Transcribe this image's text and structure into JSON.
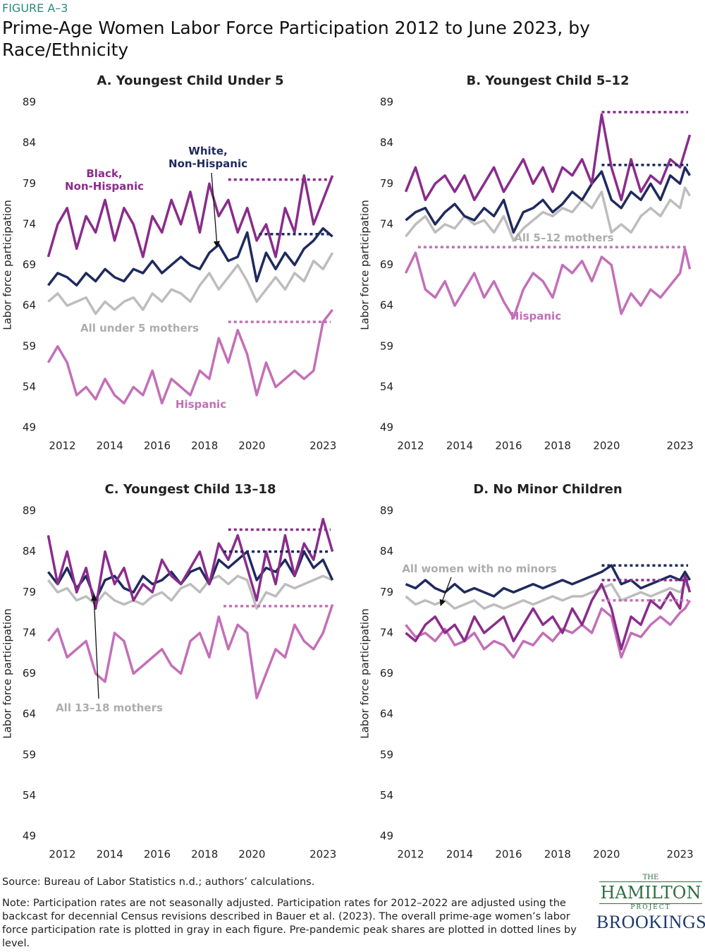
{
  "figure_label": "FIGURE A–3",
  "title": "Prime-Age Women Labor Force Participation 2012 to June 2023, by Race/Ethnicity",
  "source": "Source: Bureau of Labor Statistics n.d.; authors’ calculations.",
  "note": "Note: Participation rates are not seasonally adjusted. Participation rates for 2012–2022 are adjusted using the backcast for decennial Census revisions described in Bauer et al. (2023).  The overall prime-age women’s labor force participation rate is plotted in gray in each figure. Pre-pandemic peak shares are plotted in dotted lines by level.",
  "logos": {
    "the": "THE",
    "hamilton": "HAMILTON",
    "project": "PROJECT",
    "brookings": "BROOKINGS"
  },
  "chart_data": [
    {
      "type": "line",
      "title": "A. Youngest Child Under 5",
      "y_label": "Labor force participation",
      "x": [
        2011.4,
        2011.8,
        2012.2,
        2012.6,
        2013.0,
        2013.4,
        2013.8,
        2014.2,
        2014.6,
        2015.0,
        2015.4,
        2015.8,
        2016.2,
        2016.6,
        2017.0,
        2017.4,
        2017.8,
        2018.2,
        2018.6,
        2019.0,
        2019.4,
        2019.8,
        2020.2,
        2020.6,
        2021.0,
        2021.4,
        2021.8,
        2022.2,
        2022.6,
        2023.0,
        2023.4
      ],
      "xlim": [
        2011.3,
        2023.5
      ],
      "xticks": [
        2012,
        2014,
        2016,
        2018,
        2020,
        2023
      ],
      "ylim": [
        49,
        89
      ],
      "yticks": [
        49,
        54,
        59,
        64,
        69,
        74,
        79,
        84,
        89
      ],
      "series": [
        {
          "name": "All under 5 mothers",
          "color": "#bdbdbd",
          "values": [
            64.5,
            65.5,
            64,
            64.5,
            65,
            63,
            64.5,
            63.5,
            64.5,
            65,
            63.5,
            65.5,
            64.5,
            66,
            65.5,
            64.5,
            66.5,
            68,
            66,
            67.5,
            69,
            67,
            64.5,
            66,
            67.5,
            66,
            68,
            67,
            69.5,
            68.5,
            70.5
          ]
        },
        {
          "name": "Hispanic",
          "color": "#c36fb8",
          "values": [
            57,
            59,
            57,
            53,
            54,
            52.5,
            55,
            53,
            52,
            54,
            53,
            56,
            52,
            55,
            54,
            53,
            56,
            55,
            60,
            57,
            61,
            58,
            53,
            57,
            54,
            55,
            56,
            55,
            56,
            62,
            63.5
          ]
        },
        {
          "name": "White,\nNon-Hispanic",
          "color": "#1f2a5e",
          "values": [
            66.5,
            68,
            67.5,
            66.5,
            68,
            67,
            68.5,
            67.5,
            67,
            68.5,
            68,
            69.5,
            68,
            69,
            70,
            69,
            68.5,
            70.5,
            71.5,
            69.5,
            70,
            73,
            67,
            70.5,
            68.5,
            70.5,
            69,
            71,
            72,
            73.5,
            72.5
          ]
        },
        {
          "name": "Black,\nNon-Hispanic",
          "color": "#8a2c8c",
          "values": [
            70,
            74,
            76,
            71,
            75,
            73,
            77,
            72,
            76,
            74,
            70,
            75,
            73,
            77,
            74,
            78,
            73,
            79,
            75,
            77,
            73,
            76,
            72,
            74,
            70,
            76,
            73,
            80,
            74,
            77,
            80
          ]
        }
      ],
      "peaks": [
        {
          "color": "#8a2c8c",
          "value": 79.5,
          "from": 2019
        },
        {
          "color": "#1f2a5e",
          "value": 72.8,
          "from": 2020.3
        },
        {
          "color": "#c36fb8",
          "value": 62,
          "from": 2019
        }
      ]
    },
    {
      "type": "line",
      "title": "B. Youngest Child 5–12",
      "y_label": "Labor force participation",
      "x": [
        2011.8,
        2012.2,
        2012.6,
        2013.0,
        2013.4,
        2013.8,
        2014.2,
        2014.6,
        2015.0,
        2015.4,
        2015.8,
        2016.2,
        2016.6,
        2017.0,
        2017.4,
        2017.8,
        2018.2,
        2018.6,
        2019.0,
        2019.4,
        2019.8,
        2020.2,
        2020.6,
        2021.0,
        2021.4,
        2021.8,
        2022.2,
        2022.6,
        2023.0,
        2023.2,
        2023.4
      ],
      "xlim": [
        2011.7,
        2023.5
      ],
      "xticks": [
        2012,
        2014,
        2016,
        2018,
        2020,
        2023
      ],
      "ylim": [
        49,
        89
      ],
      "yticks": [
        49,
        54,
        59,
        64,
        69,
        74,
        79,
        84,
        89
      ],
      "series": [
        {
          "name": "All 5–12 mothers",
          "color": "#bdbdbd",
          "values": [
            72.5,
            74,
            75,
            73,
            74,
            73.5,
            75,
            74,
            74.5,
            73,
            75,
            72,
            73.5,
            74.5,
            75.5,
            75,
            76,
            75.5,
            77,
            76,
            78,
            73,
            74,
            73,
            75,
            76,
            75,
            77,
            76,
            78.5,
            77.5
          ]
        },
        {
          "name": "Hispanic",
          "color": "#c36fb8",
          "values": [
            68,
            70.5,
            66,
            65,
            67,
            64,
            66,
            68,
            65,
            67,
            64.5,
            62.5,
            66,
            68,
            67,
            65,
            69,
            68,
            69.5,
            67,
            70,
            69,
            63,
            65.5,
            64,
            66,
            65,
            66.5,
            68,
            71,
            68.5
          ]
        },
        {
          "color": "#1f2a5e",
          "values": [
            74.5,
            75.5,
            76,
            74,
            75.5,
            76.5,
            75,
            74.5,
            76,
            75,
            77,
            73,
            75.5,
            76,
            77,
            75.5,
            76.5,
            78,
            77,
            79,
            80.5,
            77,
            76,
            78,
            77,
            79,
            77,
            80,
            79,
            81,
            80
          ]
        },
        {
          "color": "#8a2c8c",
          "values": [
            78,
            81,
            77,
            79,
            80,
            78,
            80,
            77,
            79,
            81,
            78,
            80,
            82,
            79,
            81,
            78,
            81,
            80,
            82,
            79,
            87.5,
            81,
            77,
            82,
            78,
            80,
            79,
            82,
            81,
            83,
            85
          ]
        }
      ],
      "peaks": [
        {
          "color": "#8a2c8c",
          "value": 87.8,
          "from": 2019.8
        },
        {
          "color": "#1f2a5e",
          "value": 81.3,
          "from": 2019.8
        },
        {
          "color": "#c36fb8",
          "value": 71.2,
          "from": 2012.3
        }
      ]
    },
    {
      "type": "line",
      "title": "C. Youngest Child 13–18",
      "y_label": "Labor force participation",
      "x": [
        2011.4,
        2011.8,
        2012.2,
        2012.6,
        2013.0,
        2013.4,
        2013.8,
        2014.2,
        2014.6,
        2015.0,
        2015.4,
        2015.8,
        2016.2,
        2016.6,
        2017.0,
        2017.4,
        2017.8,
        2018.2,
        2018.6,
        2019.0,
        2019.4,
        2019.8,
        2020.2,
        2020.6,
        2021.0,
        2021.4,
        2021.8,
        2022.2,
        2022.6,
        2023.0,
        2023.4
      ],
      "xlim": [
        2011.3,
        2023.5
      ],
      "xticks": [
        2012,
        2014,
        2016,
        2018,
        2020,
        2023
      ],
      "ylim": [
        49,
        89
      ],
      "yticks": [
        49,
        54,
        59,
        64,
        69,
        74,
        79,
        84,
        89
      ],
      "series": [
        {
          "name": "All 13–18 mothers",
          "color": "#bdbdbd",
          "values": [
            80.5,
            79,
            79.5,
            78,
            78.5,
            77.5,
            79,
            78,
            77.5,
            78,
            77.5,
            78.5,
            79,
            78,
            79.5,
            80,
            79,
            80.5,
            81,
            80,
            81,
            80.5,
            77,
            79,
            78.5,
            80,
            79.5,
            80,
            80.5,
            81,
            80.5
          ]
        },
        {
          "color": "#c36fb8",
          "values": [
            73,
            74.5,
            71,
            72,
            73,
            69,
            68,
            74,
            73,
            69,
            70,
            71,
            72,
            70,
            69,
            73,
            74,
            71,
            76,
            72,
            75,
            74,
            66,
            69,
            72,
            71,
            75,
            73,
            72,
            74,
            77.5
          ]
        },
        {
          "color": "#1f2a5e",
          "values": [
            81.5,
            80,
            82,
            79.5,
            81,
            78,
            80.5,
            81,
            79.5,
            79,
            81,
            80,
            80.5,
            81.5,
            80,
            81.5,
            82,
            80,
            83,
            82,
            83,
            84,
            80.5,
            82,
            81.5,
            83,
            81,
            84,
            82,
            83,
            80.5
          ]
        },
        {
          "color": "#8a2c8c",
          "values": [
            86,
            80,
            84,
            79,
            82,
            77,
            84,
            80,
            82,
            78,
            80,
            79,
            83,
            81,
            80,
            82,
            84,
            80,
            85,
            83,
            86,
            82,
            78,
            84,
            80,
            86,
            81,
            85,
            83,
            88,
            84
          ]
        }
      ],
      "peaks": [
        {
          "color": "#8a2c8c",
          "value": 86.7,
          "from": 2019
        },
        {
          "color": "#1f2a5e",
          "value": 84,
          "from": 2018.8
        },
        {
          "color": "#c36fb8",
          "value": 77.3,
          "from": 2018.8
        }
      ]
    },
    {
      "type": "line",
      "title": "D. No Minor Children",
      "y_label": "Labor force participation",
      "x": [
        2011.8,
        2012.2,
        2012.6,
        2013.0,
        2013.4,
        2013.8,
        2014.2,
        2014.6,
        2015.0,
        2015.4,
        2015.8,
        2016.2,
        2016.6,
        2017.0,
        2017.4,
        2017.8,
        2018.2,
        2018.6,
        2019.0,
        2019.4,
        2019.8,
        2020.2,
        2020.6,
        2021.0,
        2021.4,
        2021.8,
        2022.2,
        2022.6,
        2023.0,
        2023.2,
        2023.4
      ],
      "xlim": [
        2011.7,
        2023.5
      ],
      "xticks": [
        2012,
        2014,
        2016,
        2018,
        2020,
        2023
      ],
      "ylim": [
        49,
        89
      ],
      "yticks": [
        49,
        54,
        59,
        64,
        69,
        74,
        79,
        84,
        89
      ],
      "series": [
        {
          "name": "All women with no minors",
          "color": "#bdbdbd",
          "values": [
            78.5,
            77.5,
            78,
            77.5,
            78,
            77,
            77.5,
            78,
            77,
            77.5,
            77,
            77.5,
            78,
            77.5,
            78,
            78.5,
            78,
            78.5,
            78.5,
            79,
            79.5,
            80,
            78,
            78.5,
            79,
            78.5,
            79,
            79.5,
            79,
            80,
            79.5
          ]
        },
        {
          "color": "#c36fb8",
          "values": [
            75,
            73.5,
            74,
            73,
            74.5,
            72.5,
            73,
            74,
            72,
            73,
            72.5,
            71,
            73,
            72.5,
            74,
            73,
            74.5,
            74,
            75,
            74,
            77,
            76,
            71,
            74,
            73.5,
            75,
            76,
            75,
            76.5,
            77,
            78
          ]
        },
        {
          "color": "#8a2c8c",
          "values": [
            74,
            73,
            75,
            76,
            74,
            75,
            73,
            76,
            74,
            75,
            76,
            73,
            75,
            77,
            75,
            76,
            74,
            77,
            75,
            78,
            80,
            77,
            72,
            76,
            75,
            78,
            77,
            79,
            77,
            81,
            79
          ]
        },
        {
          "color": "#1f2a5e",
          "values": [
            80,
            79.5,
            80.5,
            79.5,
            79,
            80,
            79,
            79.5,
            79,
            78.5,
            79.5,
            79,
            79.5,
            80,
            79.5,
            80,
            80.5,
            80,
            80.5,
            81,
            81.5,
            82.3,
            80,
            80.5,
            79.5,
            80,
            80.5,
            81,
            80.5,
            81.5,
            80.5
          ]
        }
      ],
      "peaks": [
        {
          "color": "#1f2a5e",
          "value": 82.3,
          "from": 2019.8
        },
        {
          "color": "#8a2c8c",
          "value": 80.5,
          "from": 2019.8
        },
        {
          "color": "#c36fb8",
          "value": 78,
          "from": 2019.8
        }
      ]
    }
  ]
}
